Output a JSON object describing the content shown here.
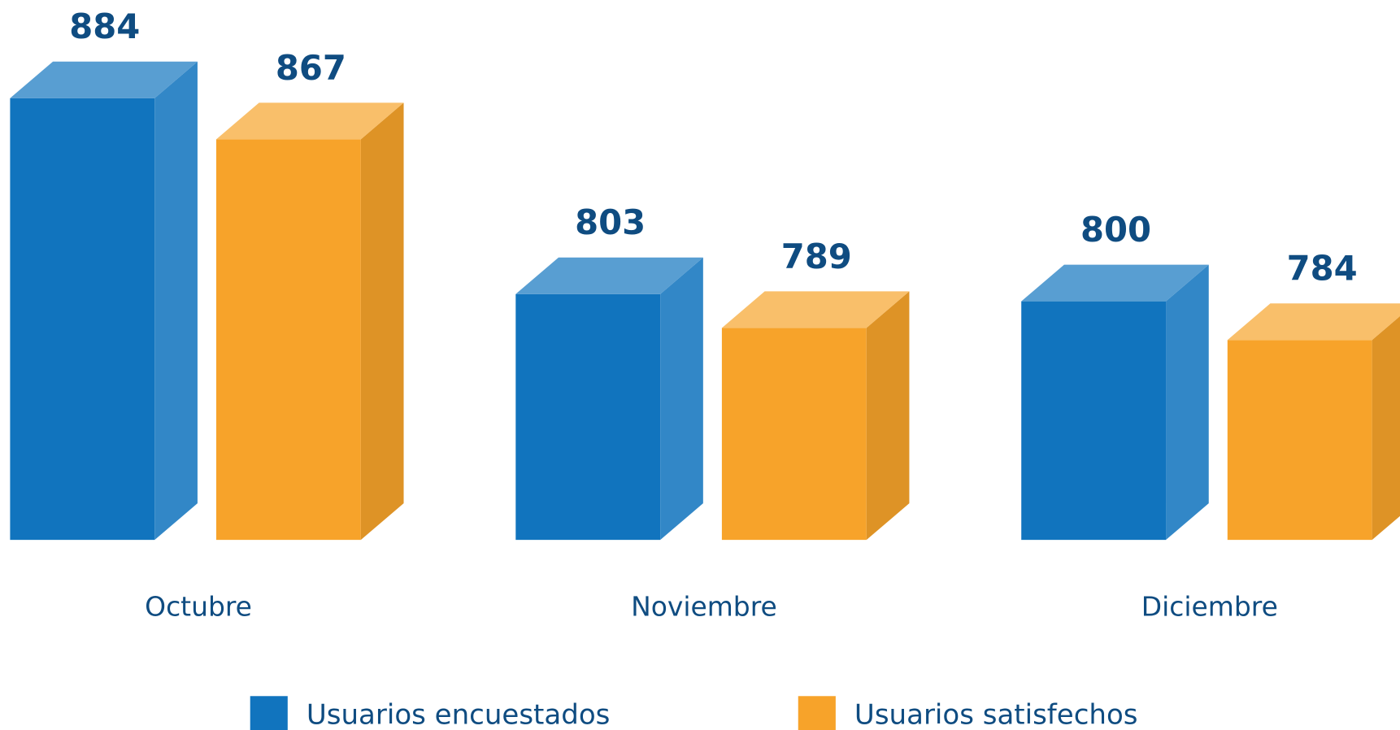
{
  "chart_data": {
    "type": "bar3d",
    "categories": [
      "Octubre",
      "Noviembre",
      "Diciembre"
    ],
    "series": [
      {
        "name": "Usuarios encuestados",
        "color": "#1174be",
        "values": [
          884,
          803,
          800
        ]
      },
      {
        "name": "Usuarios satisfechos",
        "color": "#f7a32a",
        "values": [
          867,
          789,
          784
        ]
      }
    ],
    "legend": "bottom"
  }
}
